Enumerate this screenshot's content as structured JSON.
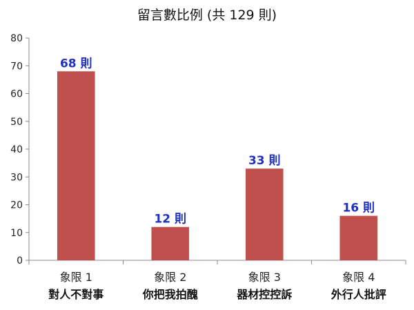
{
  "chart_data": {
    "type": "bar",
    "title": "留言數比例 (共 129 則)",
    "categories": [
      {
        "line1": "象限 1",
        "line2": "對人不對事"
      },
      {
        "line1": "象限 2",
        "line2": "你把我拍醜"
      },
      {
        "line1": "象限 3",
        "line2": "器材控控訴"
      },
      {
        "line1": "象限 4",
        "line2": "外行人批評"
      }
    ],
    "values": [
      68,
      12,
      33,
      16
    ],
    "data_labels": [
      "68 則",
      "12 則",
      "33 則",
      "16 則"
    ],
    "ylim": [
      0,
      80
    ],
    "yticks": [
      "0",
      "10",
      "20",
      "30",
      "40",
      "50",
      "60",
      "70",
      "80"
    ],
    "bar_color": "#c0504d",
    "label_color": "#1f2fbf",
    "grid": false,
    "legend": "none"
  }
}
